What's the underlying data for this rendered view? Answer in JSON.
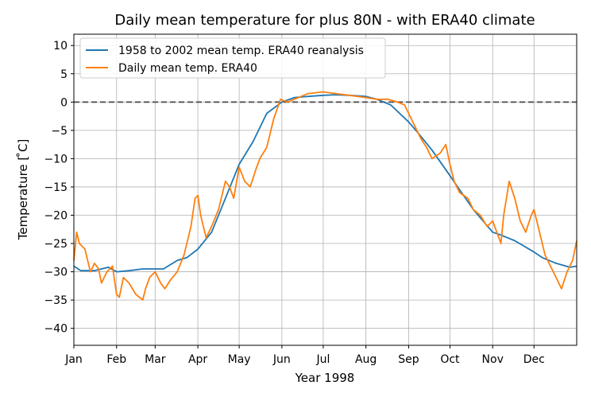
{
  "chart_data": {
    "type": "line",
    "title": "Daily mean temperature for plus 80N - with ERA40 climate",
    "xlabel": "Year 1998",
    "ylabel": "Temperature [$^\\circ$C]",
    "ylabel_display": "Temperature [ ̊C]",
    "xlim": [
      0,
      365
    ],
    "ylim": [
      -43,
      12
    ],
    "grid": true,
    "legend_position": "top-left",
    "x_ticks": [
      {
        "label": "Jan",
        "day": 0
      },
      {
        "label": "Feb",
        "day": 31
      },
      {
        "label": "Mar",
        "day": 59
      },
      {
        "label": "Apr",
        "day": 90
      },
      {
        "label": "May",
        "day": 120
      },
      {
        "label": "Jun",
        "day": 151
      },
      {
        "label": "Jul",
        "day": 181
      },
      {
        "label": "Aug",
        "day": 212
      },
      {
        "label": "Sep",
        "day": 243
      },
      {
        "label": "Oct",
        "day": 273
      },
      {
        "label": "Nov",
        "day": 304
      },
      {
        "label": "Dec",
        "day": 334
      }
    ],
    "y_ticks": [
      10,
      5,
      0,
      -5,
      -10,
      -15,
      -20,
      -25,
      -30,
      -35,
      -40
    ],
    "reference_line": {
      "y": 0,
      "style": "dashed",
      "color": "#555555"
    },
    "series": [
      {
        "name": "1958 to 2002 mean temp. ERA40 reanalysis",
        "color": "#1f77b4",
        "x": [
          0,
          5,
          15,
          25,
          31,
          40,
          50,
          59,
          65,
          75,
          82,
          90,
          100,
          110,
          120,
          130,
          140,
          151,
          160,
          170,
          181,
          190,
          200,
          212,
          220,
          230,
          243,
          250,
          260,
          273,
          280,
          290,
          304,
          310,
          320,
          334,
          340,
          350,
          360,
          365
        ],
        "y": [
          -29,
          -29.8,
          -29.8,
          -29.2,
          -30,
          -29.8,
          -29.5,
          -29.5,
          -29.5,
          -28,
          -27.5,
          -26,
          -23,
          -17,
          -11,
          -7,
          -2,
          0,
          0.8,
          1.0,
          1.2,
          1.3,
          1.2,
          1.0,
          0.5,
          -0.5,
          -3.5,
          -5.5,
          -8.5,
          -13,
          -15.5,
          -19,
          -23,
          -23.5,
          -24.5,
          -26.5,
          -27.5,
          -28.5,
          -29.2,
          -29
        ]
      },
      {
        "name": "Daily mean temp. ERA40",
        "color": "#ff7f0e",
        "x": [
          0,
          2,
          4,
          8,
          12,
          15,
          18,
          20,
          24,
          28,
          31,
          33,
          36,
          40,
          45,
          50,
          52,
          55,
          59,
          63,
          66,
          70,
          75,
          80,
          85,
          88,
          90,
          92,
          96,
          100,
          105,
          110,
          113,
          116,
          120,
          124,
          128,
          132,
          135,
          140,
          145,
          150,
          155,
          160,
          170,
          181,
          190,
          200,
          212,
          220,
          228,
          235,
          240,
          243,
          248,
          252,
          256,
          260,
          266,
          270,
          273,
          276,
          280,
          286,
          290,
          295,
          300,
          304,
          310,
          312,
          316,
          320,
          324,
          328,
          332,
          334,
          338,
          342,
          346,
          350,
          354,
          358,
          362,
          365
        ],
        "y": [
          -28,
          -23,
          -25,
          -26,
          -30,
          -28.5,
          -29.5,
          -32,
          -30,
          -29,
          -34,
          -34.5,
          -31,
          -32,
          -34,
          -35,
          -33,
          -31,
          -30,
          -32,
          -33,
          -31.5,
          -30,
          -27,
          -22,
          -17,
          -16.5,
          -20,
          -24,
          -22,
          -19,
          -14,
          -15,
          -17,
          -11.5,
          -14,
          -15,
          -12,
          -10,
          -8,
          -3,
          0.5,
          0,
          0.5,
          1.5,
          1.8,
          1.5,
          1.2,
          0.8,
          0.5,
          0.5,
          0,
          -0.5,
          -2,
          -4.5,
          -6.5,
          -8,
          -10,
          -9,
          -7.5,
          -11,
          -14,
          -16,
          -17,
          -19,
          -20,
          -22,
          -21,
          -25,
          -20,
          -14,
          -17,
          -21,
          -23,
          -20,
          -19,
          -23,
          -27,
          -29,
          -31,
          -33,
          -30,
          -28,
          -24.5
        ]
      }
    ]
  }
}
